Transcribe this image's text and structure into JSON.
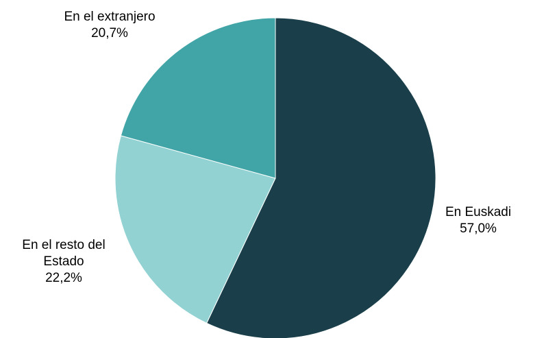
{
  "chart_data": {
    "type": "pie",
    "title": "",
    "start_angle_deg": 0,
    "direction": "clockwise",
    "slices": [
      {
        "label": [
          "En Euskadi"
        ],
        "value": 57.0,
        "value_label": "57,0%",
        "color": "#1a3f4a"
      },
      {
        "label": [
          "En el resto del",
          "Estado"
        ],
        "value": 22.2,
        "value_label": "22,2%",
        "color": "#92d2d3"
      },
      {
        "label": [
          "En el extranjero"
        ],
        "value": 20.7,
        "value_label": "20,7%",
        "color": "#41a5a7"
      }
    ],
    "legend": "none",
    "data_labels": "outside"
  }
}
